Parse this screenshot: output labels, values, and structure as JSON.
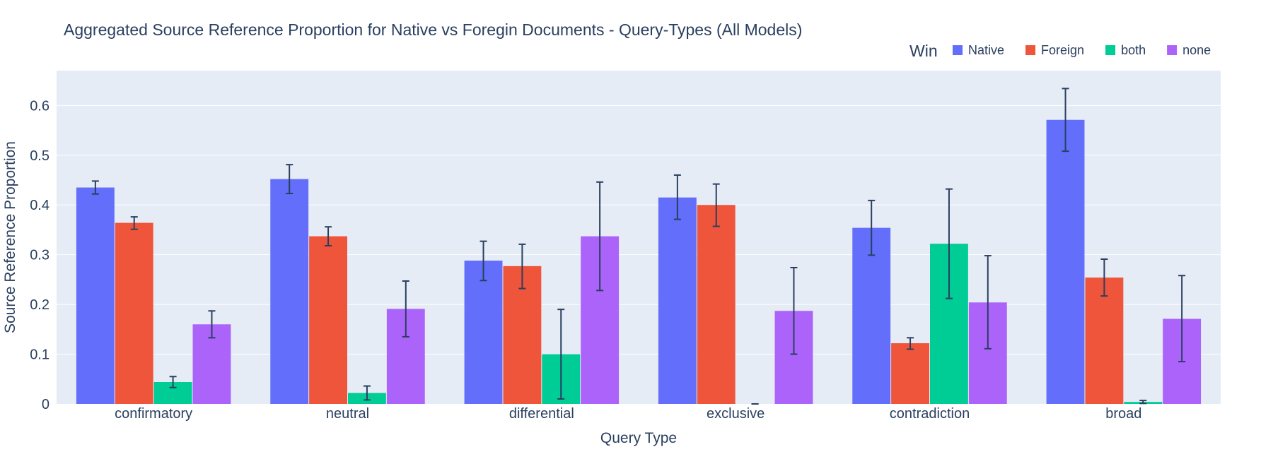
{
  "chart_data": {
    "type": "bar",
    "title": "Aggregated Source Reference Proportion for Native vs Foregin Documents -  Query-Types (All Models)",
    "xlabel": "Query Type",
    "ylabel": "Source Reference Proportion",
    "legend_title": "Win",
    "legend_placement": "top-right, horizontal",
    "grid": true,
    "ylim": [
      0,
      0.67
    ],
    "yticks": [
      0,
      0.1,
      0.2,
      0.3,
      0.4,
      0.5,
      0.6
    ],
    "ytick_labels": [
      "0",
      "0.1",
      "0.2",
      "0.3",
      "0.4",
      "0.5",
      "0.6"
    ],
    "categories": [
      "confirmatory",
      "neutral",
      "differential",
      "exclusive",
      "contradiction",
      "broad"
    ],
    "series": [
      {
        "name": "Native",
        "color": "#636efa",
        "values": [
          0.435,
          0.452,
          0.288,
          0.415,
          0.354,
          0.571
        ],
        "err_low": [
          0.422,
          0.423,
          0.248,
          0.371,
          0.299,
          0.508
        ],
        "err_high": [
          0.448,
          0.481,
          0.327,
          0.46,
          0.409,
          0.634
        ]
      },
      {
        "name": "Foreign",
        "color": "#ef553b",
        "values": [
          0.364,
          0.337,
          0.277,
          0.4,
          0.122,
          0.254
        ],
        "err_low": [
          0.351,
          0.318,
          0.232,
          0.357,
          0.11,
          0.217
        ],
        "err_high": [
          0.376,
          0.356,
          0.321,
          0.442,
          0.133,
          0.291
        ]
      },
      {
        "name": "both",
        "color": "#00cc96",
        "values": [
          0.044,
          0.022,
          0.1,
          0.0,
          0.322,
          0.004
        ],
        "err_low": [
          0.033,
          0.008,
          0.01,
          0.0,
          0.212,
          0.001
        ],
        "err_high": [
          0.055,
          0.036,
          0.19,
          0.0,
          0.432,
          0.007
        ]
      },
      {
        "name": "none",
        "color": "#ab63fa",
        "values": [
          0.16,
          0.191,
          0.337,
          0.187,
          0.204,
          0.171
        ],
        "err_low": [
          0.133,
          0.135,
          0.228,
          0.1,
          0.111,
          0.085
        ],
        "err_high": [
          0.187,
          0.247,
          0.446,
          0.274,
          0.298,
          0.258
        ]
      }
    ],
    "colors": {
      "plot_background": "#e5ecf6",
      "gridline": "#ffffff",
      "error_bar": "#2a3f5f",
      "text": "#2a3f5f"
    }
  }
}
